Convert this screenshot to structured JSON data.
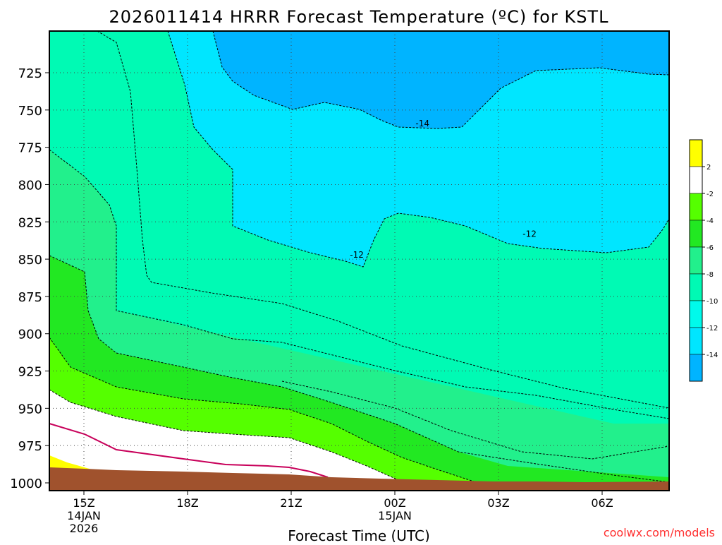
{
  "chart_data": {
    "type": "contour",
    "title": "2026011414 HRRR Forecast Temperature (ºC) for KSTL",
    "xlabel": "Forecast Time (UTC)",
    "ylabel": "",
    "credit": "coolwx.com/models",
    "x_ticks": [
      {
        "h": 15,
        "lines": [
          "15Z",
          "14JAN",
          "2026"
        ]
      },
      {
        "h": 18,
        "lines": [
          "18Z"
        ]
      },
      {
        "h": 21,
        "lines": [
          "21Z"
        ]
      },
      {
        "h": 24,
        "lines": [
          "00Z",
          "15JAN"
        ]
      },
      {
        "h": 27,
        "lines": [
          "03Z"
        ]
      },
      {
        "h": 30,
        "lines": [
          "06Z"
        ]
      }
    ],
    "xlim": [
      "14JAN 14Z",
      "15JAN 08Z"
    ],
    "y_ticks": [
      725,
      750,
      775,
      800,
      825,
      850,
      875,
      900,
      925,
      950,
      975,
      1000
    ],
    "ylim": [
      1003,
      702
    ],
    "y_units": "hPa",
    "grid": "dotted at ticks",
    "color_levels": [
      {
        "label": "2",
        "color": "#ffff00"
      },
      {
        "label": "-2",
        "color": "#ffffff"
      },
      {
        "label": "-4",
        "color": "#55ff00"
      },
      {
        "label": "-6",
        "color": "#22e822"
      },
      {
        "label": "-8",
        "color": "#22f08c"
      },
      {
        "label": "-10",
        "color": "#00fab4"
      },
      {
        "label": "-12",
        "color": "#00faeb"
      },
      {
        "label": "-14",
        "color": "#00e6ff"
      },
      {
        "label": "",
        "color": "#00b4ff"
      }
    ],
    "legend_tick_labels": [
      "2",
      "-2",
      "-4",
      "-6",
      "-8",
      "-10",
      "-12",
      "-14"
    ],
    "contour_labels": [
      {
        "text": "-14",
        "h": 24.8,
        "p": 760
      },
      {
        "text": "-12",
        "h": 22.9,
        "p": 848
      },
      {
        "text": "-12",
        "h": 27.9,
        "p": 834
      }
    ],
    "region_fill_order": [
      {
        "color": "#00b4ff",
        "comment": "coldest, below -14"
      },
      {
        "color": "#00e6ff"
      },
      {
        "color": "#00faeb"
      },
      {
        "color": "#00fab4"
      },
      {
        "color": "#22f08c"
      },
      {
        "color": "#22e822"
      },
      {
        "color": "#55ff00"
      },
      {
        "color": "#ffffff"
      },
      {
        "color": "#ffff00"
      }
    ],
    "freezing_line_color": "#c8005a",
    "ground_color": "#a0522d"
  }
}
